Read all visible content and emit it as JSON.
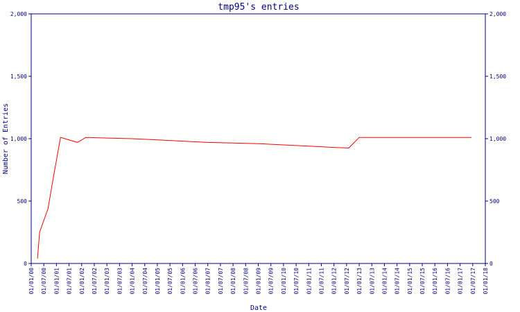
{
  "chart_data": {
    "type": "line",
    "title": "tmp95's entries",
    "xlabel": "Date",
    "ylabel": "Number of Entries",
    "ylim": [
      0,
      2000
    ],
    "yticks": [
      "0",
      "500",
      "1,000",
      "1,500",
      "2,000"
    ],
    "ytick_values": [
      0,
      500,
      1000,
      1500,
      2000
    ],
    "xticks": [
      "01/01/00",
      "01/07/00",
      "01/01/01",
      "01/07/01",
      "01/01/02",
      "01/07/02",
      "01/01/03",
      "01/07/03",
      "01/01/04",
      "01/07/04",
      "01/01/05",
      "01/07/05",
      "01/01/06",
      "01/07/06",
      "01/01/07",
      "01/07/07",
      "01/01/08",
      "01/07/08",
      "01/01/09",
      "01/07/09",
      "01/01/10",
      "01/07/10",
      "01/01/11",
      "01/07/11",
      "01/01/12",
      "01/07/12",
      "01/01/13",
      "01/07/13",
      "01/01/14",
      "01/07/14",
      "01/01/15",
      "01/07/15",
      "01/01/16",
      "01/07/16",
      "01/01/17",
      "01/07/17",
      "01/01/18"
    ],
    "grid": false,
    "line_color": "#ff0000",
    "axis_color": "#000080",
    "series": [
      {
        "x": [
          "2000-04-01",
          "2000-05-01",
          "2000-09-01",
          "2000-11-01",
          "2001-03-01",
          "2001-11-01",
          "2002-03-01",
          "2003-01-01",
          "2004-01-01",
          "2005-01-01",
          "2006-01-01",
          "2007-01-01",
          "2008-01-01",
          "2009-01-01",
          "2010-01-01",
          "2011-01-01",
          "2012-01-01",
          "2012-08-01",
          "2013-01-01",
          "2014-01-01",
          "2015-01-01",
          "2016-01-01",
          "2017-01-01",
          "2017-06-15"
        ],
        "values": [
          40,
          250,
          440,
          640,
          1010,
          970,
          1010,
          1005,
          1000,
          990,
          980,
          970,
          965,
          960,
          950,
          940,
          930,
          925,
          1010,
          1010,
          1010,
          1010,
          1010,
          1010
        ]
      }
    ]
  }
}
